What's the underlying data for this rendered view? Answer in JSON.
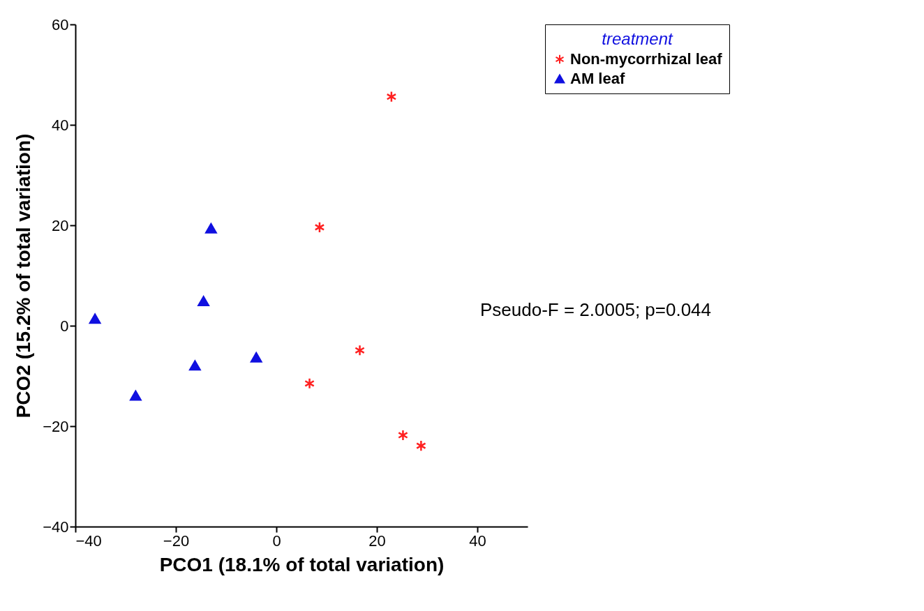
{
  "chart_data": {
    "type": "scatter",
    "xlabel": "PCO1 (18.1% of total variation)",
    "ylabel": "PCO2 (15.2% of total variation)",
    "legend_title": "treatment",
    "legend": "top right",
    "grid": false,
    "xlim": [
      -40,
      50
    ],
    "xticks": [
      -40,
      -20,
      0,
      20,
      40
    ],
    "ylim": [
      -40,
      60
    ],
    "yticks": [
      -40,
      -20,
      0,
      20,
      40,
      60
    ],
    "annotations": [
      "Pseudo-F = 2.0005; p=0.044"
    ],
    "series": [
      {
        "name": "Non-mycorrhizal leaf",
        "color": "#ff2020",
        "marker": "cross",
        "x": [
          22.9,
          8.6,
          16.6,
          6.6,
          25.2,
          28.8
        ],
        "values": [
          45.6,
          19.6,
          -4.9,
          -11.5,
          -21.8,
          -23.9
        ]
      },
      {
        "name": "AM leaf",
        "color": "#1010e0",
        "marker": "triangle",
        "x": [
          -13.0,
          -14.5,
          -36.1,
          -16.2,
          -4.0,
          -28.0
        ],
        "values": [
          19.4,
          4.9,
          1.4,
          -7.9,
          -6.3,
          -13.9
        ]
      }
    ]
  }
}
